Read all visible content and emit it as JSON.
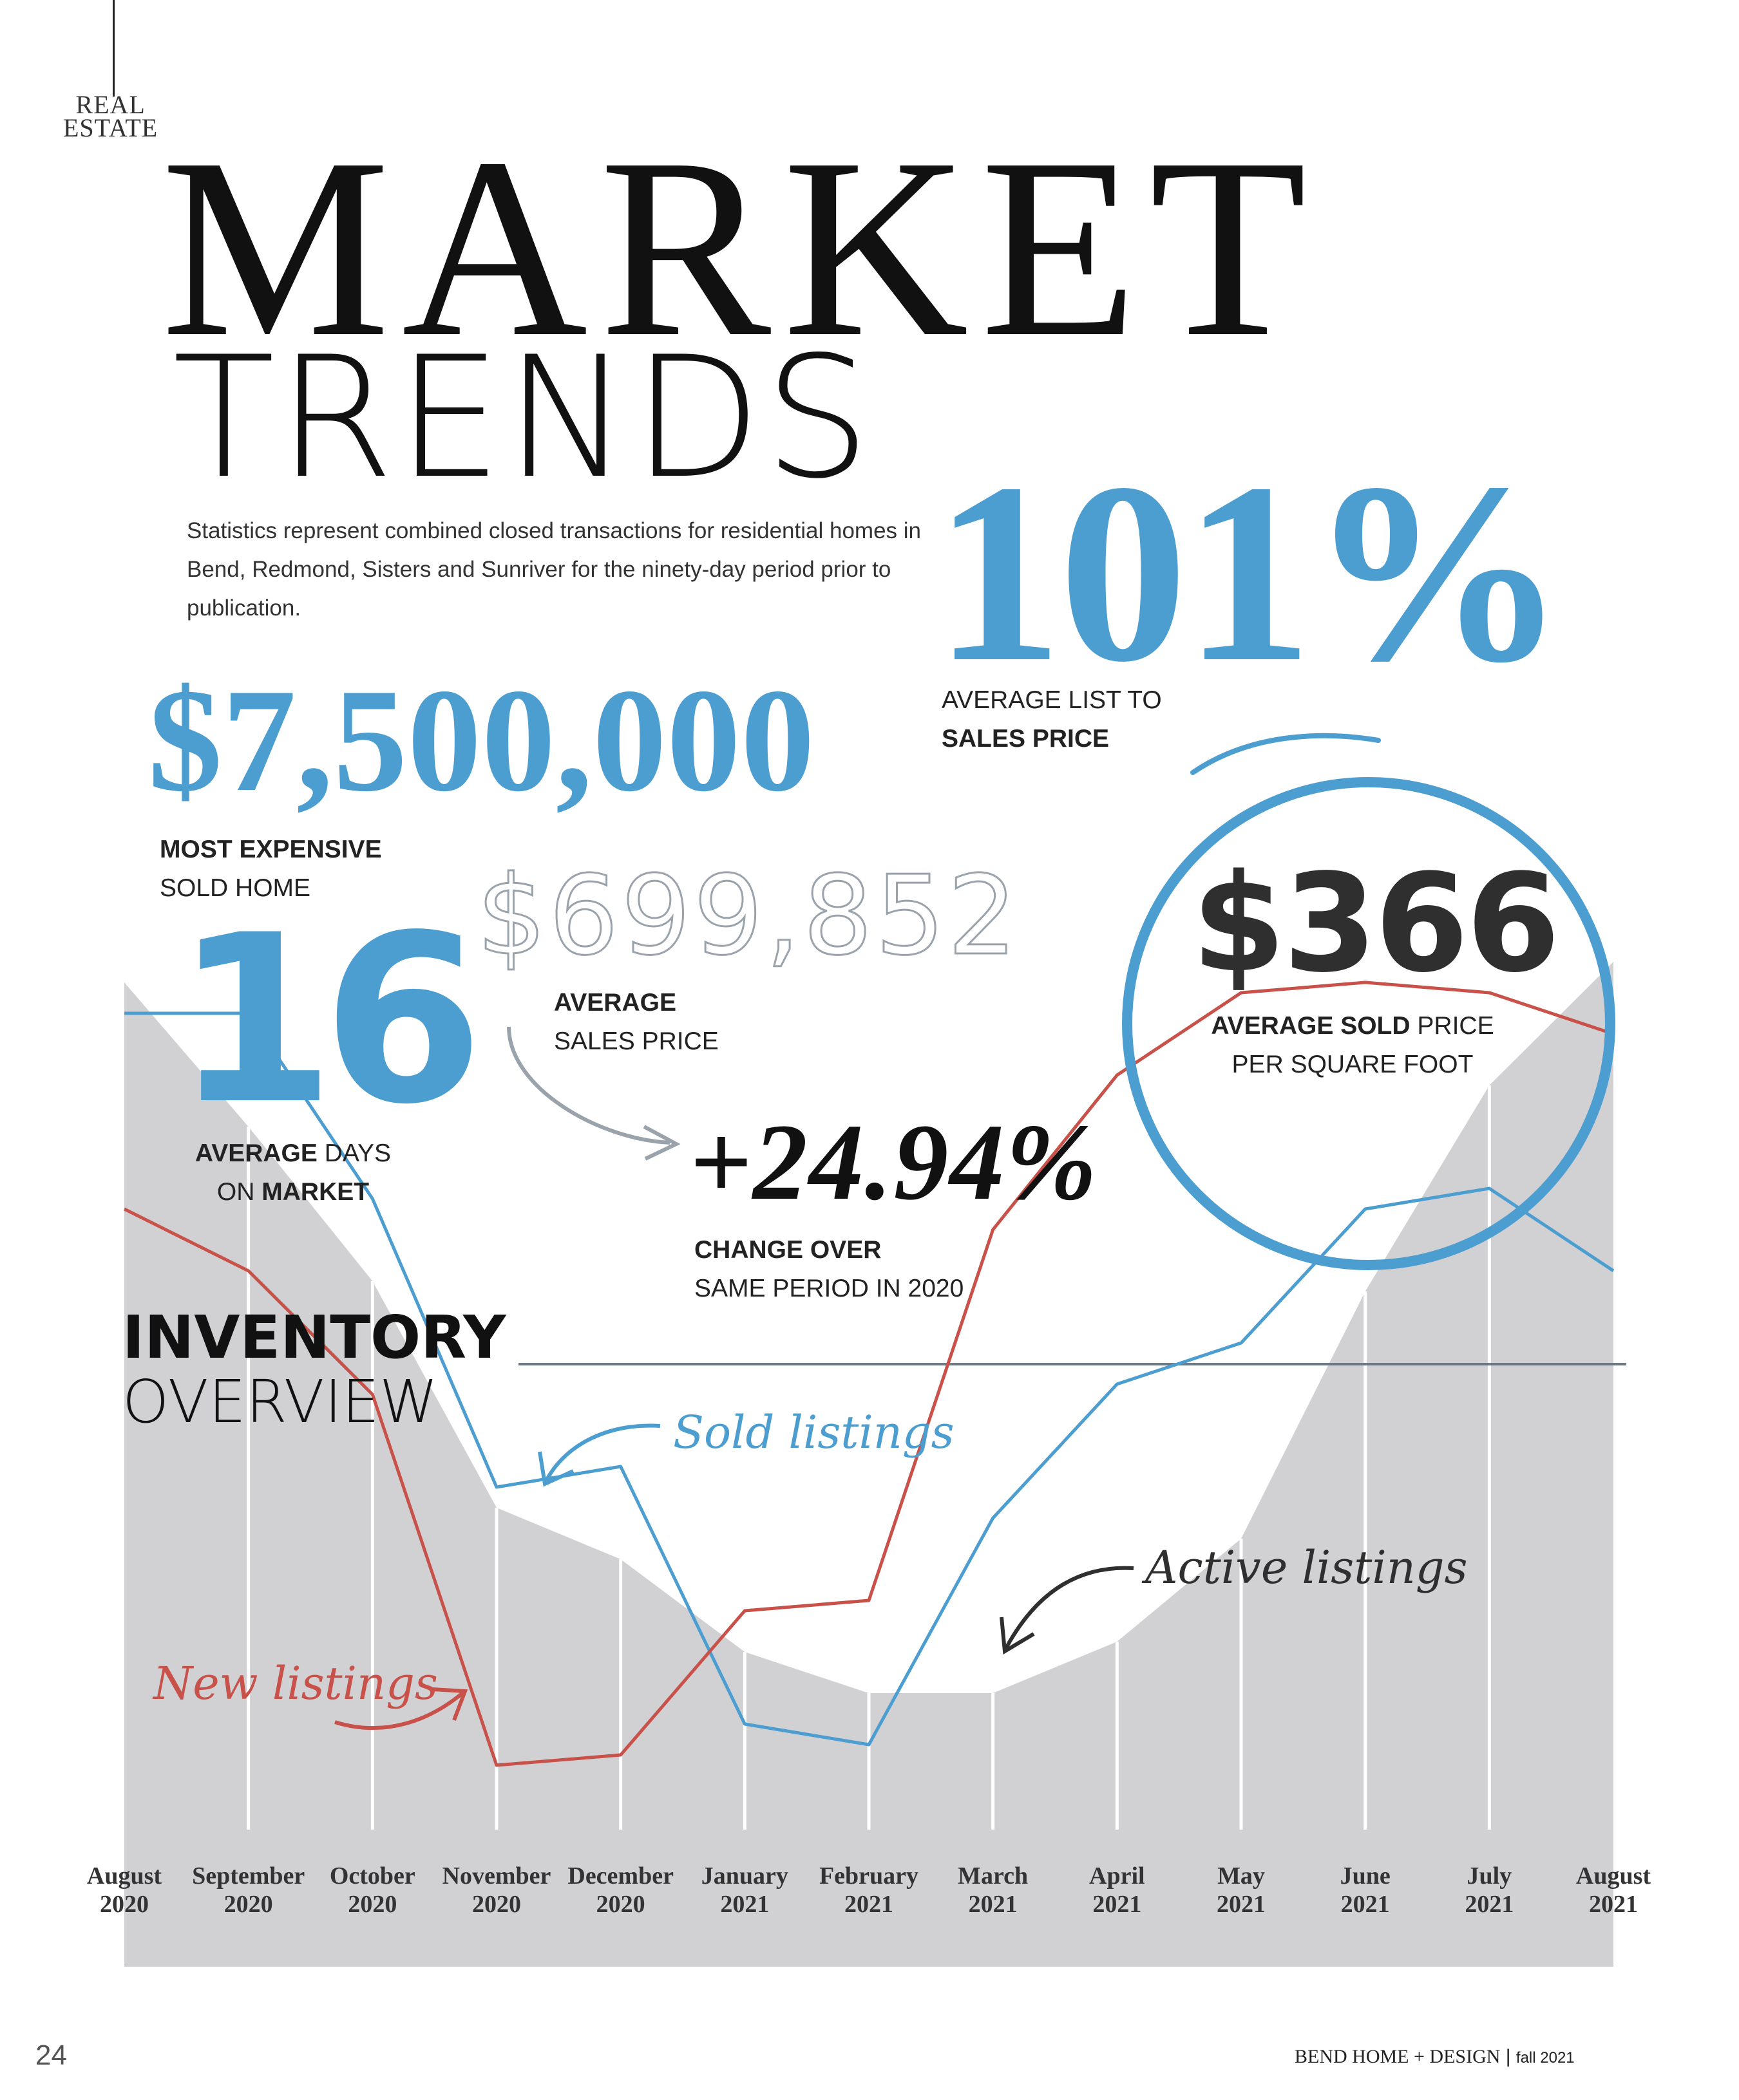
{
  "section": {
    "line1": "REAL",
    "line2": "ESTATE"
  },
  "title": {
    "main": "MARKET",
    "sub": "TRENDS"
  },
  "intro": "Statistics represent combined closed transactions for residential homes in Bend, Redmond, Sisters and Sunriver for the ninety-day period prior to publication.",
  "stats": {
    "list_to_sales": {
      "value": "101%",
      "label_line1": "AVERAGE LIST TO",
      "label_line2": "SALES PRICE"
    },
    "most_expensive": {
      "value": "$7,500,000",
      "label_bold": "MOST EXPENSIVE",
      "label_regular": "SOLD HOME"
    },
    "average_sales": {
      "value": "$699,852",
      "label_bold": "AVERAGE",
      "label_regular": "SALES PRICE"
    },
    "days_on_market": {
      "value": "16",
      "label_bold1": "AVERAGE",
      "label_regular1": "DAYS",
      "label_regular2": "ON",
      "label_bold2": "MARKET"
    },
    "price_per_sqft": {
      "value": "$366",
      "label_bold": "AVERAGE SOLD",
      "label_regular1": "PRICE",
      "label_regular2": "PER SQUARE FOOT"
    },
    "change": {
      "value": "+24.94%",
      "label_bold": "CHANGE OVER",
      "label_regular": "SAME PERIOD IN 2020"
    }
  },
  "inventory": {
    "line1": "INVENTORY",
    "line2": "OVERVIEW"
  },
  "annotations": {
    "sold": "Sold listings",
    "active": "Active listings",
    "new": "New listings"
  },
  "colors": {
    "sold": "#4c9ed1",
    "new": "#c8514a",
    "active": "#d1d1d4",
    "arrow_gray": "#9aa3ab"
  },
  "chart_data": {
    "type": "line",
    "title": "",
    "xlabel": "",
    "ylabel": "",
    "grid": false,
    "legend": "annotations on chart",
    "categories_line1": [
      "August",
      "September",
      "October",
      "November",
      "December",
      "January",
      "February",
      "March",
      "April",
      "May",
      "June",
      "July",
      "August"
    ],
    "categories_line2": [
      "2020",
      "2020",
      "2020",
      "2020",
      "2020",
      "2021",
      "2021",
      "2021",
      "2021",
      "2021",
      "2021",
      "2021",
      "2021"
    ],
    "ylim": [
      0,
      1
    ],
    "series": [
      {
        "name": "Active listings",
        "type": "area",
        "values": [
          0.84,
          0.7,
          0.55,
          0.33,
          0.28,
          0.19,
          0.15,
          0.15,
          0.2,
          0.3,
          0.54,
          0.74,
          0.86
        ]
      },
      {
        "name": "Sold listings",
        "values": [
          0.81,
          0.81,
          0.63,
          0.35,
          0.37,
          0.12,
          0.1,
          0.32,
          0.45,
          0.49,
          0.62,
          0.64,
          0.56
        ]
      },
      {
        "name": "New listings",
        "values": [
          0.62,
          0.56,
          0.44,
          0.08,
          0.09,
          0.23,
          0.24,
          0.6,
          0.75,
          0.83,
          0.84,
          0.83,
          0.79
        ]
      }
    ]
  },
  "footer": {
    "page": "24",
    "publication": "BEND HOME + DESIGN",
    "issue": "fall 2021"
  }
}
